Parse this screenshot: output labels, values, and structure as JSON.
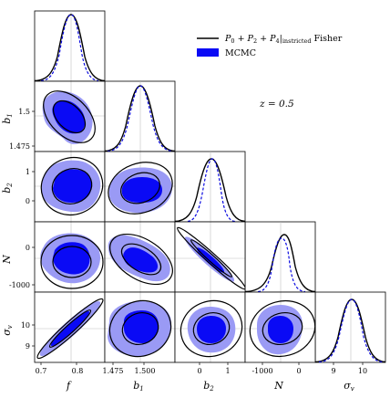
{
  "chart_data": {
    "type": "corner",
    "redshift_label": "z = 0.5",
    "legend": {
      "fisher": "P0 + P2 + P4|instricted Fisher",
      "fisher_main": "P",
      "fisher_sub0": "0",
      "fisher_plus1": " + P",
      "fisher_sub2": "2",
      "fisher_plus2": " + P",
      "fisher_sub4": "4",
      "fisher_bar": "|",
      "fisher_sub_restricted": "instricted",
      "fisher_tail": " Fisher",
      "mcmc": "MCMC"
    },
    "colors": {
      "fisher": "#000000",
      "mcmc_outer": "#9a9af5",
      "mcmc_inner": "#0a0af5",
      "mcmc_line": "#0a0ae0",
      "truth": "#bfbfbf"
    },
    "parameters": [
      {
        "name": "f",
        "label": "f",
        "range": [
          0.68,
          0.88
        ],
        "ticks": [
          "0.7",
          "0.8"
        ],
        "tick_values": [
          0.7,
          0.8
        ],
        "mean": 0.78
      },
      {
        "name": "b1",
        "label": "b1",
        "range": [
          1.47,
          1.53
        ],
        "ticks": [
          "1.475",
          "1.500"
        ],
        "tick_values": [
          1.475,
          1.5
        ],
        "mean": 1.5
      },
      {
        "name": "b2",
        "label": "b2",
        "range": [
          -0.55,
          1.7
        ],
        "ticks": [
          "0",
          "1"
        ],
        "tick_values": [
          0,
          1
        ],
        "mean": 0.45
      },
      {
        "name": "N",
        "label": "N",
        "range": [
          -1450,
          320
        ],
        "ticks": [
          "-1000",
          "0"
        ],
        "tick_values": [
          -1000,
          0
        ],
        "mean": -550
      },
      {
        "name": "sigma_v",
        "label": "σv",
        "range": [
          8.3,
          11.4
        ],
        "ticks": [
          "9",
          "10"
        ],
        "tick_values": [
          9,
          10
        ],
        "mean": 9.7
      }
    ],
    "row_ticks": {
      "b1": [
        "1.5",
        "1.475"
      ],
      "b2": [
        "1",
        "0"
      ],
      "N": [
        "0",
        "-1000"
      ],
      "sigma_v": [
        "10",
        "9"
      ]
    },
    "x_tick_text": {
      "f": [
        "0.7",
        "0.8"
      ],
      "b1": [
        "1.475",
        "1.500"
      ],
      "b2": [
        "0",
        "1"
      ],
      "N": [
        "-1000",
        "0"
      ],
      "sigma_v": [
        "9",
        "10"
      ]
    },
    "y_tick_text": {
      "b1": [
        "1.5",
        "1.475"
      ],
      "b2": [
        "1",
        "0"
      ],
      "N": [
        "0",
        "-1000"
      ],
      "sigma_v": [
        "10",
        "9"
      ]
    },
    "axis_labels": {
      "f": "f",
      "b1": "b",
      "b1_sub": "1",
      "b2": "b",
      "b2_sub": "2",
      "N": "N",
      "sv": "σ",
      "sv_sub": "v"
    }
  }
}
